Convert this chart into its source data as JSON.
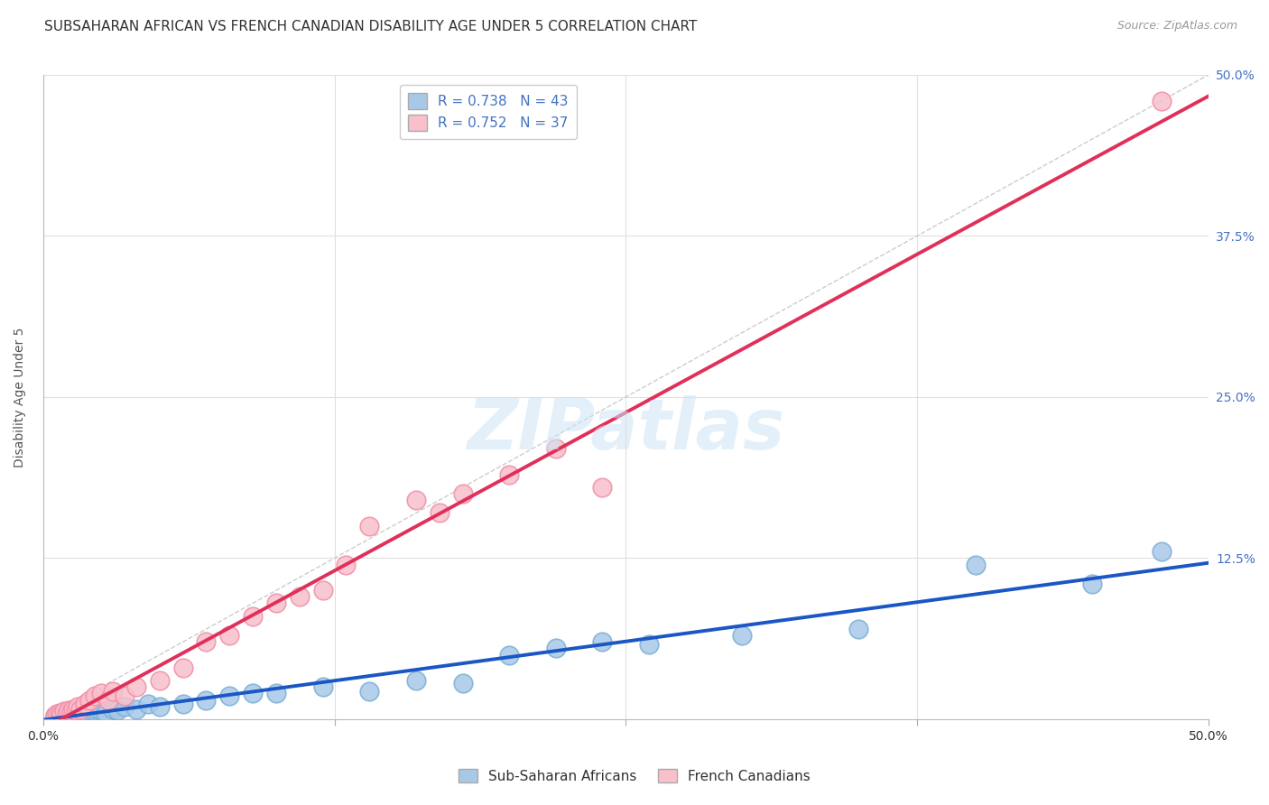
{
  "title": "SUBSAHARAN AFRICAN VS FRENCH CANADIAN DISABILITY AGE UNDER 5 CORRELATION CHART",
  "source": "Source: ZipAtlas.com",
  "ylabel": "Disability Age Under 5",
  "xlim": [
    0.0,
    0.5
  ],
  "ylim": [
    0.0,
    0.5
  ],
  "blue_color": "#a8c8e8",
  "blue_edge_color": "#7bafd4",
  "pink_color": "#f9c0cc",
  "pink_edge_color": "#f090a8",
  "blue_line_color": "#1a56c4",
  "pink_line_color": "#e0305a",
  "legend_R_blue": "0.738",
  "legend_N_blue": "43",
  "legend_R_pink": "0.752",
  "legend_N_pink": "37",
  "watermark": "ZIPatlas",
  "blue_scatter_x": [
    0.005,
    0.007,
    0.008,
    0.009,
    0.01,
    0.011,
    0.012,
    0.013,
    0.014,
    0.015,
    0.016,
    0.017,
    0.018,
    0.019,
    0.02,
    0.022,
    0.023,
    0.025,
    0.027,
    0.03,
    0.032,
    0.035,
    0.04,
    0.045,
    0.05,
    0.06,
    0.07,
    0.08,
    0.09,
    0.1,
    0.12,
    0.14,
    0.16,
    0.18,
    0.2,
    0.22,
    0.24,
    0.26,
    0.3,
    0.35,
    0.4,
    0.45,
    0.48
  ],
  "blue_scatter_y": [
    0.003,
    0.004,
    0.004,
    0.005,
    0.003,
    0.005,
    0.004,
    0.006,
    0.003,
    0.005,
    0.006,
    0.004,
    0.007,
    0.005,
    0.007,
    0.006,
    0.008,
    0.007,
    0.005,
    0.008,
    0.007,
    0.01,
    0.008,
    0.012,
    0.01,
    0.012,
    0.015,
    0.018,
    0.02,
    0.02,
    0.025,
    0.022,
    0.03,
    0.028,
    0.05,
    0.055,
    0.06,
    0.058,
    0.065,
    0.07,
    0.12,
    0.105,
    0.13
  ],
  "pink_scatter_x": [
    0.005,
    0.006,
    0.007,
    0.008,
    0.009,
    0.01,
    0.011,
    0.012,
    0.013,
    0.014,
    0.015,
    0.016,
    0.018,
    0.02,
    0.022,
    0.025,
    0.028,
    0.03,
    0.035,
    0.04,
    0.05,
    0.06,
    0.07,
    0.08,
    0.09,
    0.1,
    0.11,
    0.12,
    0.13,
    0.14,
    0.16,
    0.17,
    0.18,
    0.2,
    0.22,
    0.24,
    0.48
  ],
  "pink_scatter_y": [
    0.003,
    0.004,
    0.005,
    0.004,
    0.006,
    0.005,
    0.007,
    0.006,
    0.008,
    0.007,
    0.01,
    0.008,
    0.012,
    0.015,
    0.018,
    0.02,
    0.015,
    0.022,
    0.018,
    0.025,
    0.03,
    0.04,
    0.06,
    0.065,
    0.08,
    0.09,
    0.095,
    0.1,
    0.12,
    0.15,
    0.17,
    0.16,
    0.175,
    0.19,
    0.21,
    0.18,
    0.48
  ],
  "grid_color": "#e0e0e0",
  "background_color": "#ffffff",
  "title_fontsize": 11,
  "axis_label_fontsize": 10,
  "tick_fontsize": 10,
  "legend_fontsize": 11
}
